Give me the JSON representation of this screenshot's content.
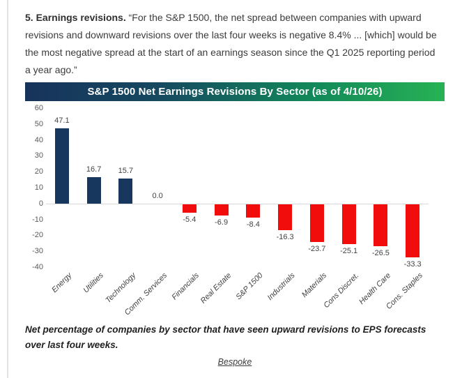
{
  "intro": {
    "lead": "5. Earnings revisions.",
    "quote": " “For the S&P 1500, the net spread between companies with upward revisions and downward revisions over the last four weeks is negative 8.4% ... [which] would be the most negative spread at the start of an earnings season since the Q1 2025 reporting period a year ago.”"
  },
  "chart_data": {
    "type": "bar",
    "title": "S&P 1500 Net Earnings Revisions By Sector (as of 4/10/26)",
    "categories": [
      "Energy",
      "Utilities",
      "Technology",
      "Comm. Services",
      "Financials",
      "Real Estate",
      "S&P 1500",
      "Industrials",
      "Materials",
      "Cons Discret.",
      "Health Care",
      "Cons. Staples"
    ],
    "values": [
      47.1,
      16.7,
      15.7,
      0.0,
      -5.4,
      -6.9,
      -8.4,
      -16.3,
      -23.7,
      -25.1,
      -26.5,
      -33.3
    ],
    "value_labels": [
      "47.1",
      "16.7",
      "15.7",
      "0.0",
      "-5.4",
      "-6.9",
      "-8.4",
      "-16.3",
      "-23.7",
      "-25.1",
      "-26.5",
      "-33.3"
    ],
    "xlabel": "",
    "ylabel": "",
    "ylim": [
      -40,
      60
    ],
    "yticks": [
      60,
      50,
      40,
      30,
      20,
      10,
      0,
      -10,
      -20,
      -30,
      -40
    ],
    "grid": false,
    "legend": null,
    "positive_color": "#17375e",
    "negative_color": "#f20d0d"
  },
  "colors": {
    "title_gradient_left": "#17335a",
    "title_gradient_right": "#27b254",
    "title_text": "#ffffff",
    "axis_text": "#595959",
    "zero_line": "#d9d9d9",
    "page_background": "#ffffff"
  },
  "caption": "Net percentage of companies by sector that have seen upward revisions to EPS forecasts over last four weeks.",
  "source_link": "Bespoke"
}
